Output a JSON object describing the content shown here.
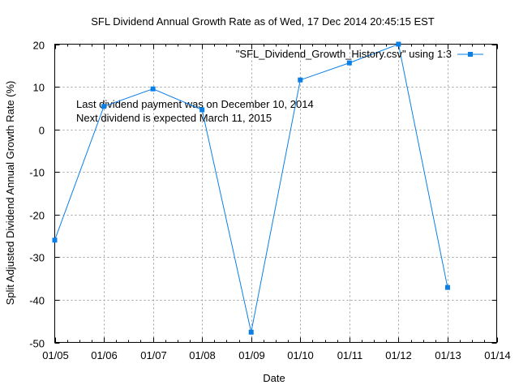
{
  "chart_data": {
    "type": "line",
    "title": "SFL Dividend Annual Growth Rate as of Wed, 17 Dec 2014 20:45:15 EST",
    "xlabel": "Date",
    "ylabel": "Split Adjusted Dividend Annual Growth Rate (%)",
    "x_tick_labels": [
      "01/05",
      "01/06",
      "01/07",
      "01/08",
      "01/09",
      "01/10",
      "01/11",
      "01/12",
      "01/13",
      "01/14"
    ],
    "y_tick_labels": [
      "20",
      "10",
      "0",
      "-10",
      "-20",
      "-30",
      "-40",
      "-50"
    ],
    "xlim": [
      2005,
      2014
    ],
    "ylim": [
      -50,
      20
    ],
    "y_ticks": [
      20,
      10,
      0,
      -10,
      -20,
      -30,
      -40,
      -50
    ],
    "grid": true,
    "legend_position": "top-right",
    "series": [
      {
        "name": "\"SFL_Dividend_Growth_History.csv\" using 1:3",
        "color": "#0a7fe8",
        "x": [
          2005,
          2006,
          2007,
          2008,
          2009,
          2010,
          2011,
          2012,
          2013
        ],
        "values": [
          -26.0,
          5.4,
          9.5,
          4.6,
          -47.6,
          11.6,
          15.6,
          20.0,
          -37.1
        ]
      }
    ],
    "annotations": [
      "Last dividend payment was on December 10, 2014",
      "Next dividend is expected March 11, 2015"
    ]
  }
}
